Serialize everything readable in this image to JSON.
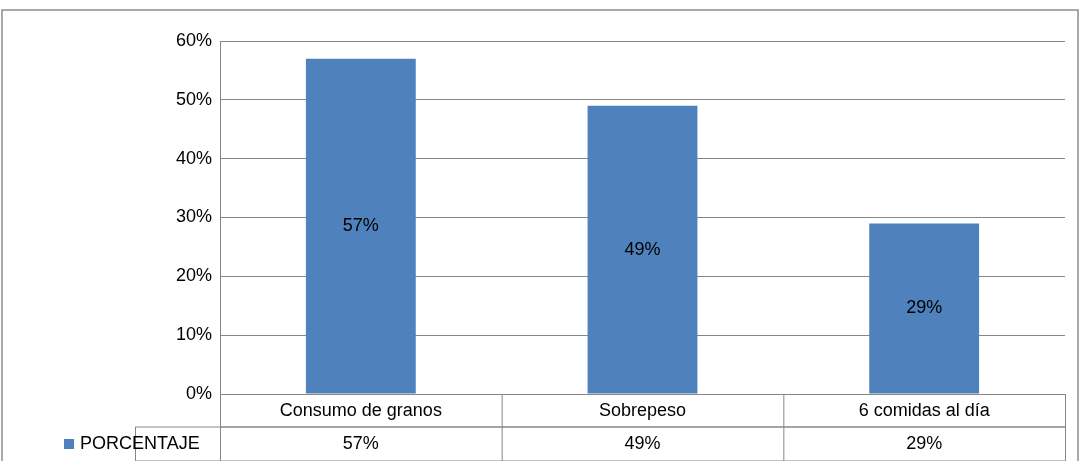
{
  "chart_data": {
    "type": "bar",
    "categories": [
      "Consumo de granos",
      "Sobrepeso",
      "6 comidas al día"
    ],
    "series": [
      {
        "name": "PORCENTAJE",
        "color": "#4f81bd",
        "values": [
          57,
          49,
          29
        ],
        "value_labels": [
          "57%",
          "49%",
          "29%"
        ]
      }
    ],
    "ylim": [
      0,
      60
    ],
    "yticks": [
      {
        "value": 0,
        "label": "0%"
      },
      {
        "value": 10,
        "label": "10%"
      },
      {
        "value": 20,
        "label": "20%"
      },
      {
        "value": 30,
        "label": "30%"
      },
      {
        "value": 40,
        "label": "40%"
      },
      {
        "value": 50,
        "label": "50%"
      },
      {
        "value": 60,
        "label": "60%"
      }
    ],
    "grid": "y",
    "legend": "bottom"
  }
}
